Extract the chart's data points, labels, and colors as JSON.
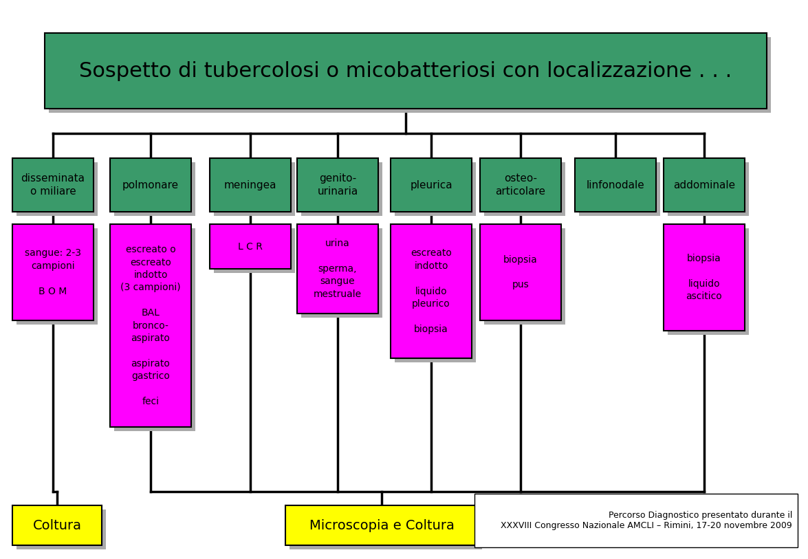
{
  "bg_color": "#ffffff",
  "title_box": {
    "text": "Sospetto di tubercolosi o micobatteriosi con localizzazione . . .",
    "bg": "#3a9a6a",
    "text_color": "#000000",
    "fontsize": 22
  },
  "green": "#3a9a6a",
  "magenta": "#ff00ff",
  "yellow": "#ffff00",
  "shadow": "#aaaaaa",
  "line_color": "#000000",
  "footer_text": "Percorso Diagnostico presentato durante il\nXXXVIII Congresso Nazionale AMCLI – Rimini, 17-20 novembre 2009",
  "level2_labels": [
    "disseminata\no miliare",
    "polmonare",
    "meningea",
    "genito-\nurinaria",
    "pleurica",
    "osteo-\narticolare",
    "linfonodale",
    "addominale"
  ],
  "level3_data": [
    {
      "col": 0,
      "text": "sangue: 2-3\ncampioni\n\nB O M"
    },
    {
      "col": 1,
      "text": "escreato o\nescreato\nindotto\n(3 campioni)\n\nBAL\nbronco-\naspirato\n\naspirato\ngastrico\n\nfeci"
    },
    {
      "col": 2,
      "text": "L C R"
    },
    {
      "col": 3,
      "text": "urina\n\nsperma,\nsangue\nmestruale"
    },
    {
      "col": 4,
      "text": "escreato\nindotto\n\nliquido\npleurico\n\nbiopsia"
    },
    {
      "col": 5,
      "text": "biopsia\n\npus"
    },
    {
      "col": 7,
      "text": "biopsia\n\nliquido\nascitico"
    }
  ]
}
